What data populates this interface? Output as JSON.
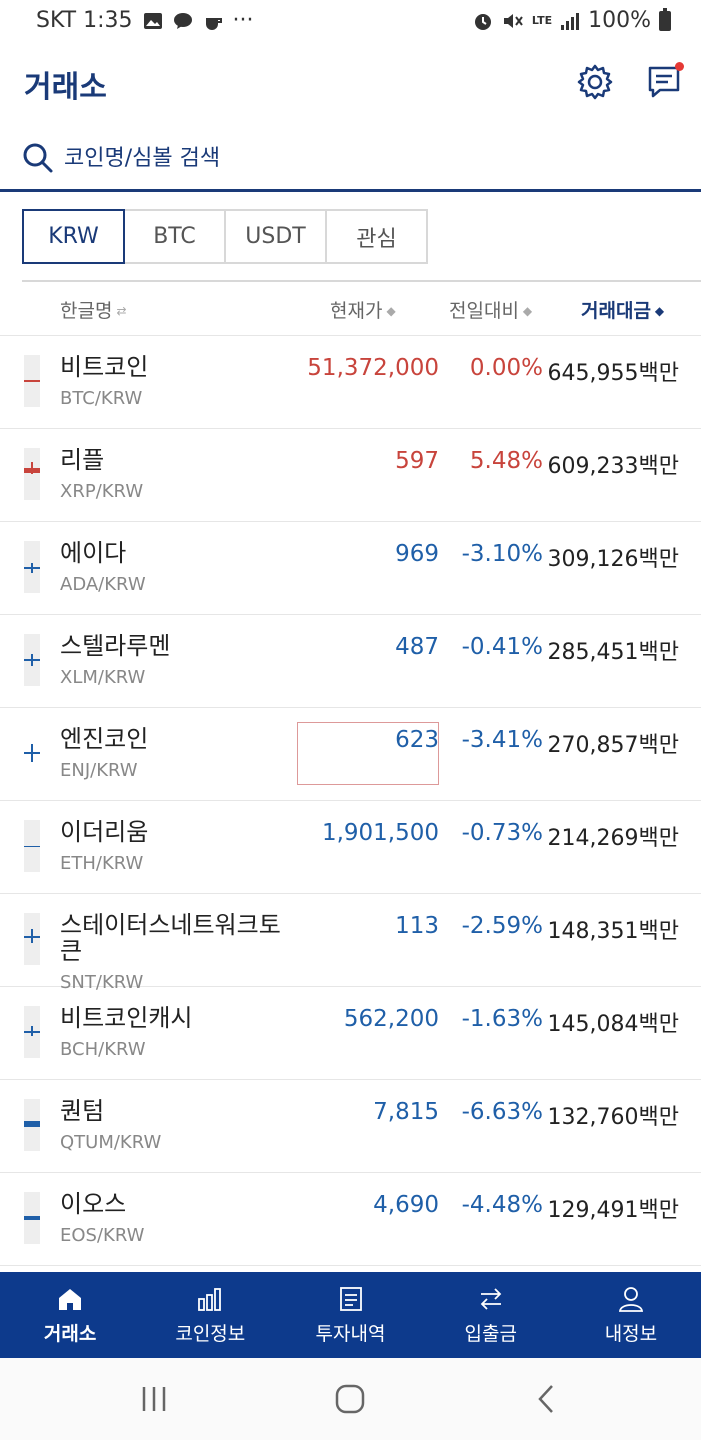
{
  "status_bar": {
    "carrier_time": "SKT 1:35",
    "extra": "···",
    "network": "LTE",
    "battery": "100%"
  },
  "header": {
    "title": "거래소"
  },
  "search": {
    "placeholder": "코인명/심볼 검색"
  },
  "tabs": [
    {
      "label": "KRW",
      "active": true
    },
    {
      "label": "BTC",
      "active": false
    },
    {
      "label": "USDT",
      "active": false
    },
    {
      "label": "관심",
      "active": false
    }
  ],
  "columns": {
    "name": "한글명",
    "price": "현재가",
    "change": "전일대비",
    "volume": "거래대금"
  },
  "coins": [
    {
      "name": "비트코인",
      "symbol": "BTC/KRW",
      "price": "51,372,000",
      "change": "0.00%",
      "volume": "645,955백만",
      "trend": "up"
    },
    {
      "name": "리플",
      "symbol": "XRP/KRW",
      "price": "597",
      "change": "5.48%",
      "volume": "609,233백만",
      "trend": "up"
    },
    {
      "name": "에이다",
      "symbol": "ADA/KRW",
      "price": "969",
      "change": "-3.10%",
      "volume": "309,126백만",
      "trend": "down"
    },
    {
      "name": "스텔라루멘",
      "symbol": "XLM/KRW",
      "price": "487",
      "change": "-0.41%",
      "volume": "285,451백만",
      "trend": "down"
    },
    {
      "name": "엔진코인",
      "symbol": "ENJ/KRW",
      "price": "623",
      "change": "-3.41%",
      "volume": "270,857백만",
      "trend": "down"
    },
    {
      "name": "이더리움",
      "symbol": "ETH/KRW",
      "price": "1,901,500",
      "change": "-0.73%",
      "volume": "214,269백만",
      "trend": "down"
    },
    {
      "name": "스테이터스네트워크토큰",
      "symbol": "SNT/KRW",
      "price": "113",
      "change": "-2.59%",
      "volume": "148,351백만",
      "trend": "down"
    },
    {
      "name": "비트코인캐시",
      "symbol": "BCH/KRW",
      "price": "562,200",
      "change": "-1.63%",
      "volume": "145,084백만",
      "trend": "down"
    },
    {
      "name": "퀀텀",
      "symbol": "QTUM/KRW",
      "price": "7,815",
      "change": "-6.63%",
      "volume": "132,760백만",
      "trend": "down"
    },
    {
      "name": "이오스",
      "symbol": "EOS/KRW",
      "price": "4,690",
      "change": "-4.48%",
      "volume": "129,491백만",
      "trend": "down"
    }
  ],
  "bottom_nav": [
    {
      "label": "거래소",
      "icon": "home-icon",
      "active": true
    },
    {
      "label": "코인정보",
      "icon": "bar-chart-icon",
      "active": false
    },
    {
      "label": "투자내역",
      "icon": "document-icon",
      "active": false
    },
    {
      "label": "입출금",
      "icon": "transfer-icon",
      "active": false
    },
    {
      "label": "내정보",
      "icon": "person-icon",
      "active": false
    }
  ],
  "colors": {
    "brand": "#1a3a78",
    "nav_bg": "#0d3a8c",
    "up": "#c8443c",
    "down": "#1f5fa8"
  }
}
